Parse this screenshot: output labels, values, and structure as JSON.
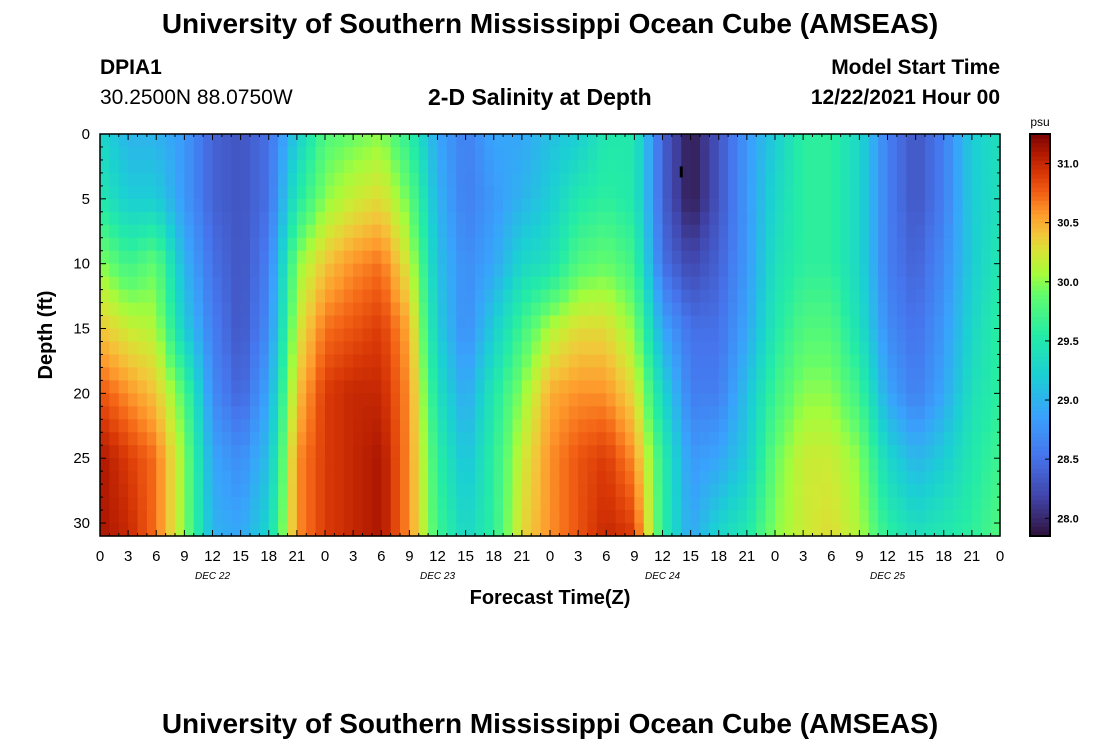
{
  "header": {
    "title": "University of Southern Mississippi Ocean Cube (AMSEAS)",
    "station_id": "DPIA1",
    "coordinates": "30.2500N  88.0750W",
    "chart_title": "2-D Salinity at Depth",
    "model_start_label": "Model Start Time",
    "model_start_value": "12/22/2021 Hour 00"
  },
  "footer": {
    "title": "University of Southern Mississippi Ocean Cube (AMSEAS)"
  },
  "colors": {
    "frame": "#000000",
    "background": "#ffffff"
  },
  "chart_data": {
    "type": "heatmap",
    "title": "2-D Salinity at Depth",
    "xlabel": "Forecast Time(Z)",
    "ylabel": "Depth (ft)",
    "xlim": [
      0,
      96
    ],
    "ylim": [
      31,
      0
    ],
    "x_tick_values": [
      0,
      3,
      6,
      9,
      12,
      15,
      18,
      21,
      24,
      27,
      30,
      33,
      36,
      39,
      42,
      45,
      48,
      51,
      54,
      57,
      60,
      63,
      66,
      69,
      72,
      75,
      78,
      81,
      84,
      87,
      90,
      93,
      96
    ],
    "x_tick_labels": [
      "0",
      "3",
      "6",
      "9",
      "12",
      "15",
      "18",
      "21",
      "0",
      "3",
      "6",
      "9",
      "12",
      "15",
      "18",
      "21",
      "0",
      "3",
      "6",
      "9",
      "12",
      "15",
      "18",
      "21",
      "0",
      "3",
      "6",
      "9",
      "12",
      "15",
      "18",
      "21",
      "0"
    ],
    "day_labels": [
      {
        "hour": 12,
        "label": "DEC 22"
      },
      {
        "hour": 36,
        "label": "DEC 23"
      },
      {
        "hour": 60,
        "label": "DEC 24"
      },
      {
        "hour": 84,
        "label": "DEC 25"
      }
    ],
    "y_tick_values": [
      0,
      5,
      10,
      15,
      20,
      25,
      30
    ],
    "y_tick_labels": [
      "0",
      "5",
      "10",
      "15",
      "20",
      "25",
      "30"
    ],
    "colorbar": {
      "label": "psu",
      "min": 27.85,
      "max": 31.25,
      "ticks": [
        28.0,
        28.5,
        29.0,
        29.5,
        30.0,
        30.5,
        31.0
      ],
      "tick_labels": [
        "28.0",
        "28.5",
        "29.0",
        "29.5",
        "30.0",
        "30.5",
        "31.0"
      ]
    },
    "columns_hours": [
      0,
      3,
      6,
      9,
      12,
      15,
      18,
      21,
      24,
      27,
      30,
      33,
      36,
      39,
      42,
      45,
      48,
      51,
      54,
      57,
      60,
      63,
      66,
      69,
      72,
      75,
      78,
      81,
      84,
      87,
      90,
      93,
      96
    ],
    "depths_ft": [
      0,
      5,
      10,
      15,
      20,
      25,
      31
    ],
    "salinity_psu": [
      [
        29.3,
        29.5,
        30.0,
        30.4,
        30.8,
        31.1,
        31.1
      ],
      [
        29.0,
        29.2,
        29.7,
        30.2,
        30.6,
        30.9,
        31.0
      ],
      [
        29.0,
        29.2,
        29.9,
        30.1,
        30.4,
        30.7,
        30.7
      ],
      [
        28.8,
        28.8,
        29.0,
        29.2,
        29.8,
        30.0,
        30.0
      ],
      [
        28.4,
        28.4,
        28.5,
        28.6,
        28.7,
        28.9,
        29.0
      ],
      [
        28.3,
        28.3,
        28.3,
        28.3,
        28.4,
        28.7,
        28.9
      ],
      [
        28.5,
        28.5,
        28.6,
        28.7,
        28.9,
        29.1,
        29.3
      ],
      [
        29.2,
        29.5,
        30.0,
        30.2,
        30.4,
        30.6,
        30.6
      ],
      [
        29.8,
        30.0,
        30.4,
        30.7,
        30.9,
        30.9,
        30.9
      ],
      [
        29.9,
        30.2,
        30.6,
        30.8,
        31.0,
        31.0,
        31.0
      ],
      [
        30.0,
        30.3,
        30.7,
        30.9,
        31.0,
        31.1,
        31.1
      ],
      [
        29.6,
        29.9,
        30.2,
        30.5,
        30.6,
        30.6,
        30.6
      ],
      [
        28.9,
        29.0,
        29.1,
        29.2,
        29.4,
        29.6,
        29.7
      ],
      [
        28.6,
        28.6,
        28.7,
        28.7,
        28.9,
        29.1,
        29.3
      ],
      [
        28.9,
        28.8,
        28.9,
        29.2,
        29.5,
        29.6,
        29.6
      ],
      [
        28.9,
        29.0,
        29.3,
        29.7,
        30.0,
        30.2,
        30.3
      ],
      [
        29.1,
        29.2,
        29.4,
        30.1,
        30.5,
        30.6,
        30.6
      ],
      [
        29.2,
        29.5,
        29.8,
        30.3,
        30.6,
        30.8,
        30.8
      ],
      [
        29.5,
        29.6,
        29.9,
        30.3,
        30.6,
        30.9,
        31.0
      ],
      [
        29.5,
        29.5,
        29.7,
        30.0,
        30.3,
        30.6,
        30.9
      ],
      [
        28.4,
        28.4,
        28.5,
        28.9,
        29.3,
        29.6,
        29.6
      ],
      [
        27.9,
        27.9,
        28.2,
        28.5,
        28.6,
        28.8,
        28.9
      ],
      [
        28.3,
        28.3,
        28.4,
        28.5,
        28.6,
        28.9,
        29.3
      ],
      [
        28.8,
        28.8,
        28.8,
        28.9,
        29.1,
        29.2,
        29.5
      ],
      [
        29.2,
        29.3,
        29.4,
        29.5,
        29.7,
        29.9,
        30.0
      ],
      [
        29.6,
        29.6,
        29.6,
        29.8,
        30.0,
        30.2,
        30.2
      ],
      [
        29.6,
        29.6,
        29.6,
        29.8,
        30.0,
        30.2,
        30.3
      ],
      [
        29.3,
        29.3,
        29.3,
        29.4,
        29.7,
        30.0,
        30.1
      ],
      [
        28.6,
        28.6,
        28.6,
        28.7,
        28.9,
        29.3,
        29.6
      ],
      [
        28.3,
        28.3,
        28.4,
        28.5,
        28.6,
        29.0,
        29.4
      ],
      [
        28.6,
        28.6,
        28.7,
        28.8,
        28.9,
        29.2,
        29.5
      ],
      [
        29.2,
        29.2,
        29.2,
        29.3,
        29.4,
        29.5,
        29.6
      ],
      [
        29.4,
        29.4,
        29.5,
        29.6,
        29.6,
        29.7,
        29.8
      ]
    ]
  }
}
